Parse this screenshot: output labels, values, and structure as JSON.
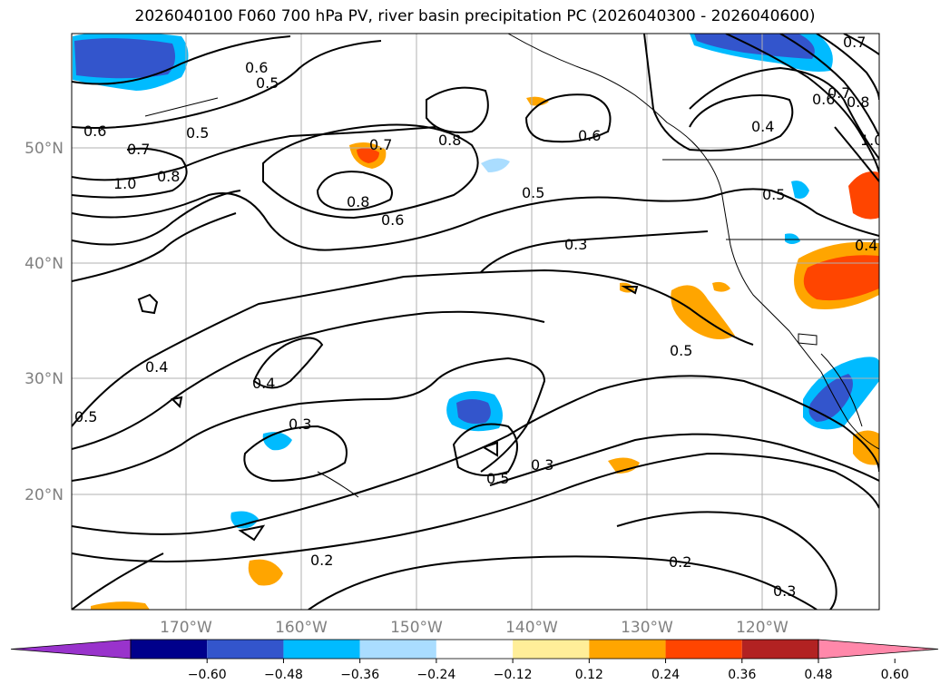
{
  "title": "2026040100 F060 700 hPa PV, river basin precipitation PC (2026040300 - 2026040600)",
  "map": {
    "lat_labels": [
      "50°N",
      "40°N",
      "30°N",
      "20°N"
    ],
    "lon_labels": [
      "170°W",
      "160°W",
      "150°W",
      "140°W",
      "130°W",
      "120°W"
    ],
    "contour_labels": [
      "0.6",
      "0.5",
      "0.6",
      "0.5",
      "0.7",
      "0.8",
      "1.0",
      "0.7",
      "0.8",
      "0.8",
      "0.6",
      "0.6",
      "0.5",
      "0.8",
      "0.7",
      "0.6",
      "0.4",
      "0.5",
      "0.3",
      "0.4",
      "0.4",
      "0.3",
      "0.5",
      "0.5",
      "0.3",
      "0.2",
      "0.2",
      "0.3",
      "0.7",
      "0.4",
      "1.0",
      "0.5"
    ]
  },
  "colorbar": {
    "colors": [
      "#9933cc",
      "#00008b",
      "#3355cc",
      "#00bbff",
      "#aaddff",
      "#ffffff",
      "#ffee99",
      "#ffa500",
      "#ff4500",
      "#b22222",
      "#ff88aa"
    ],
    "tick_labels": [
      "−0.60",
      "−0.48",
      "−0.36",
      "−0.24",
      "−0.12",
      "0.12",
      "0.24",
      "0.36",
      "0.48",
      "0.60"
    ]
  }
}
